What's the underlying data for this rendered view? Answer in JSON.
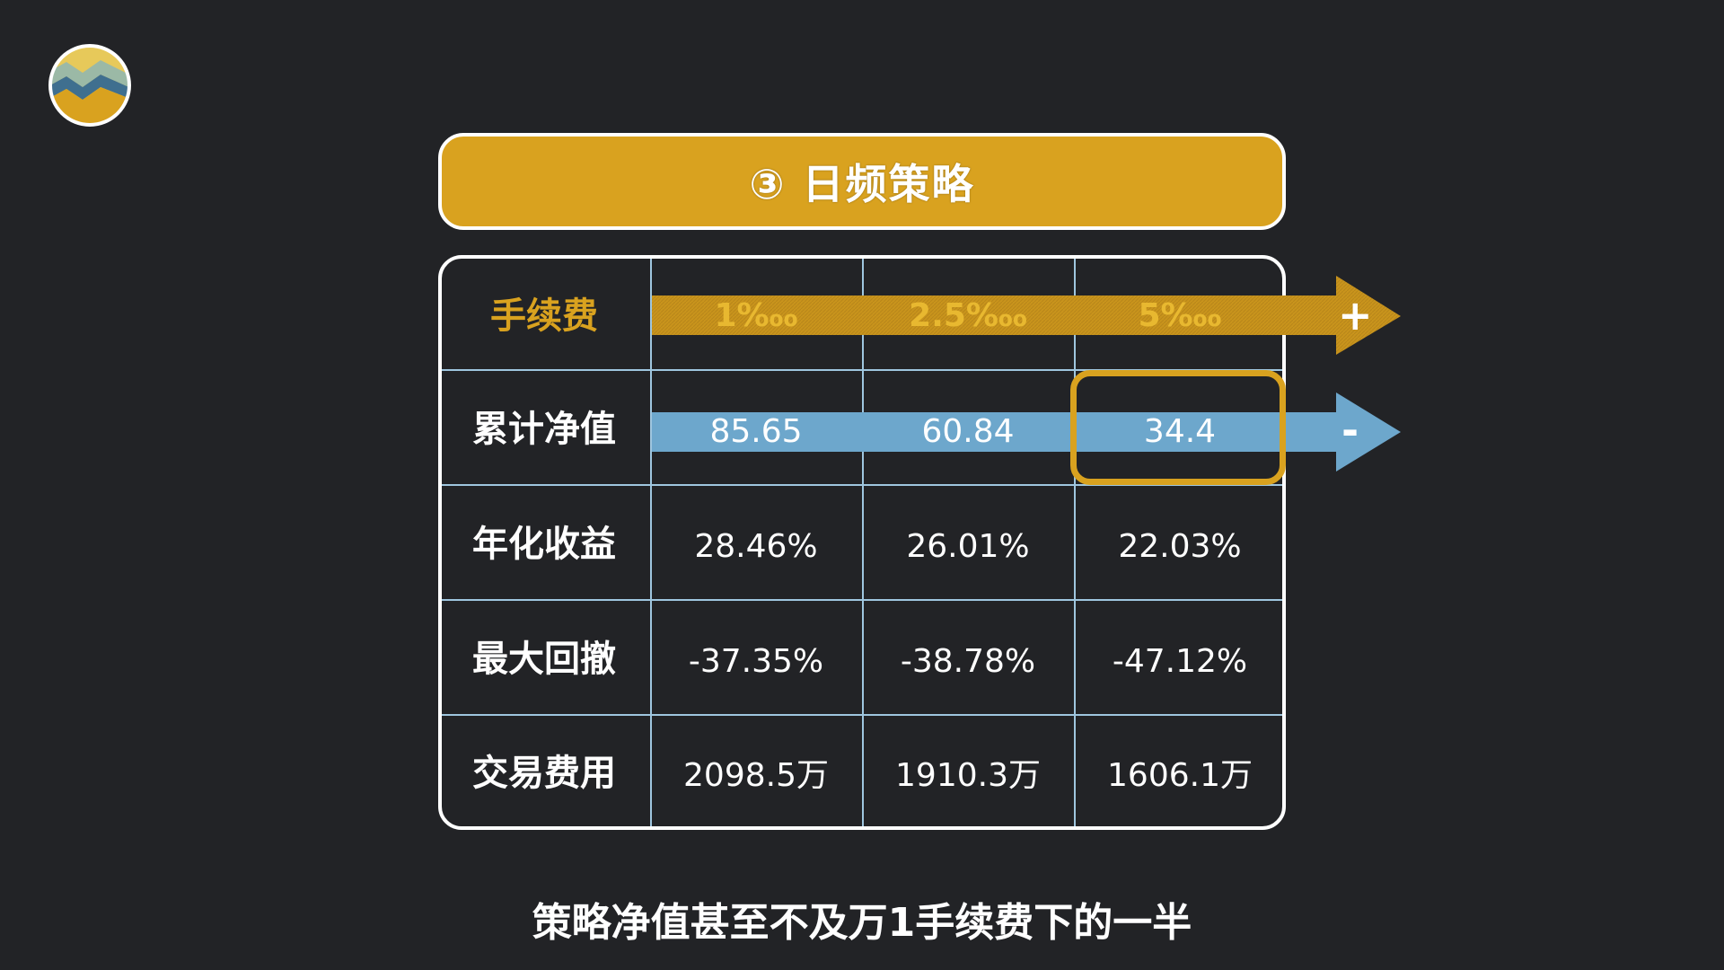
{
  "title": "③ 日频策略",
  "caption": "策略净值甚至不及万1手续费下的一半",
  "colors": {
    "background": "#222326",
    "accent": "#d9a21f",
    "blue": "#6da7cc",
    "grid": "#9fc6df"
  },
  "icons": {
    "logo": "striped-circle-logo-icon",
    "fee_arrow": "arrow-right-icon",
    "nav_arrow": "arrow-right-icon"
  },
  "fee_row": {
    "label": "手续费",
    "values": [
      "1‱",
      "2.5‱",
      "5‱"
    ],
    "sign": "+"
  },
  "nav_row": {
    "label": "累计净值",
    "values": [
      "85.65",
      "60.84",
      "34.4"
    ],
    "sign": "-"
  },
  "rows": [
    {
      "label": "年化收益",
      "values": [
        "28.46%",
        "26.01%",
        "22.03%"
      ]
    },
    {
      "label": "最大回撤",
      "values": [
        "-37.35%",
        "-38.78%",
        "-47.12%"
      ]
    },
    {
      "label": "交易费用",
      "values": [
        "2098.5万",
        "1910.3万",
        "1606.1万"
      ]
    }
  ]
}
